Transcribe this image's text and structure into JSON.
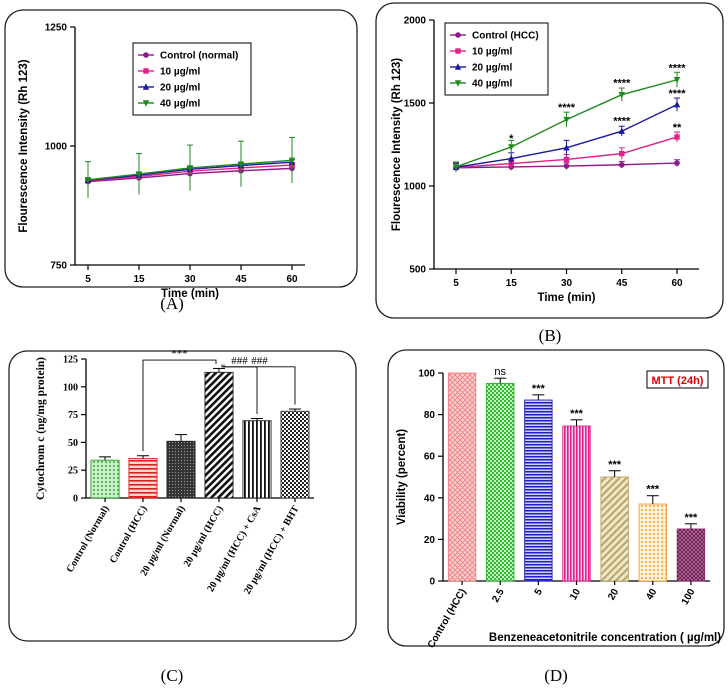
{
  "panel_labels": [
    "(A)",
    "(B)",
    "(C)",
    "(D)"
  ],
  "chart_data": [
    {
      "id": "A",
      "type": "line",
      "xlabel": "Time (min)",
      "ylabel": "Flourescence Intensity (Rh 123)",
      "x": [
        5,
        15,
        30,
        45,
        60
      ],
      "xticks": [
        "5",
        "15",
        "30",
        "45",
        "60"
      ],
      "yticks": [
        "750",
        "1000",
        "1250"
      ],
      "ylim": [
        750,
        1250
      ],
      "legend_position": "top-right",
      "series": [
        {
          "name": "Control (normal)",
          "color": "#8b1a8b",
          "marker": "circle",
          "values": [
            925,
            933,
            942,
            948,
            953
          ],
          "err": [
            5,
            5,
            5,
            5,
            5
          ]
        },
        {
          "name": "10 µg/ml",
          "color": "#e0218a",
          "marker": "square",
          "values": [
            927,
            936,
            947,
            954,
            960
          ],
          "err": [
            5,
            5,
            5,
            5,
            5
          ]
        },
        {
          "name": "20 µg/ml",
          "color": "#1a1a9e",
          "marker": "triangle",
          "values": [
            928,
            939,
            951,
            959,
            966
          ],
          "err": [
            5,
            5,
            5,
            5,
            5
          ]
        },
        {
          "name": "40 µg/ml",
          "color": "#1f8a1f",
          "marker": "triangle-down",
          "values": [
            929,
            941,
            954,
            962,
            970
          ],
          "err": [
            38,
            43,
            48,
            48,
            48
          ]
        }
      ]
    },
    {
      "id": "B",
      "type": "line",
      "xlabel": "Time (min)",
      "ylabel": "Flourescence Intensity (Rh 123)",
      "x": [
        5,
        15,
        30,
        45,
        60
      ],
      "xticks": [
        "5",
        "15",
        "30",
        "45",
        "60"
      ],
      "yticks": [
        "500",
        "1000",
        "1500",
        "2000"
      ],
      "ylim": [
        500,
        2000
      ],
      "legend_position": "top-left",
      "series": [
        {
          "name": "Control (HCC)",
          "color": "#8b1a8b",
          "marker": "circle",
          "values": [
            1110,
            1115,
            1120,
            1128,
            1138
          ],
          "err": [
            25,
            20,
            20,
            20,
            20
          ]
        },
        {
          "name": "10 µg/ml",
          "color": "#e0218a",
          "marker": "square",
          "values": [
            1112,
            1135,
            1160,
            1195,
            1295
          ],
          "err": [
            25,
            30,
            30,
            35,
            30
          ]
        },
        {
          "name": "20 µg/ml",
          "color": "#1a1a9e",
          "marker": "triangle",
          "values": [
            1113,
            1165,
            1230,
            1330,
            1490
          ],
          "err": [
            25,
            35,
            45,
            30,
            40
          ]
        },
        {
          "name": "40 µg/ml",
          "color": "#1f8a1f",
          "marker": "triangle-down",
          "values": [
            1115,
            1235,
            1400,
            1550,
            1640
          ],
          "err": [
            30,
            40,
            45,
            40,
            45
          ]
        }
      ],
      "annotations": [
        {
          "x": 15,
          "y": 1290,
          "text": "*"
        },
        {
          "x": 30,
          "y": 1475,
          "text": "****"
        },
        {
          "x": 45,
          "y": 1625,
          "text": "****"
        },
        {
          "x": 45,
          "y": 1395,
          "text": "****"
        },
        {
          "x": 60,
          "y": 1715,
          "text": "****"
        },
        {
          "x": 60,
          "y": 1560,
          "text": "****"
        },
        {
          "x": 60,
          "y": 1355,
          "text": "**"
        }
      ]
    },
    {
      "id": "C",
      "type": "bar",
      "ylabel": "Cytochrom c (ng/mg protein)",
      "categories": [
        "Control (Normal)",
        "Control (HCC)",
        "20 µg/ml (Normal)",
        "20 µg/ml (HCC)",
        "20 µg/ml (HCC) + CsA",
        "20 µg/ml (HCC) + BHT"
      ],
      "values": [
        34,
        35.5,
        51,
        113,
        69.5,
        78
      ],
      "err": [
        3,
        2.5,
        6,
        3.5,
        2,
        2
      ],
      "ylim": [
        0,
        125
      ],
      "yticks": [
        "0",
        "25",
        "50",
        "75",
        "100",
        "125"
      ],
      "colors": [
        "#2e9e2e",
        "#e01e1e",
        "#222222",
        "#222222",
        "#222222",
        "#444444"
      ],
      "patterns": [
        "dots",
        "hlines",
        "solid-dark",
        "diag",
        "vlines",
        "checker"
      ],
      "brackets": [
        {
          "from": 1,
          "to": 3,
          "text": "***"
        },
        {
          "from": 3,
          "to": 4,
          "text": "###"
        },
        {
          "from": 3,
          "to": 5,
          "text": "###"
        }
      ]
    },
    {
      "id": "D",
      "type": "bar",
      "title": "MTT (24h)",
      "xlabel": "Benzeneacetonitrile concentration ( µg/ml)",
      "ylabel": "Viability (percent)",
      "categories": [
        "Control (HCC)",
        "2.5",
        "5",
        "10",
        "20",
        "40",
        "100"
      ],
      "values": [
        100,
        95,
        87,
        74.5,
        50,
        37,
        25
      ],
      "err": [
        0,
        2.5,
        2.5,
        3,
        3,
        4,
        2.5
      ],
      "ylim": [
        0,
        100
      ],
      "yticks": [
        "0",
        "20",
        "40",
        "60",
        "80",
        "100"
      ],
      "colors": [
        "#f08080",
        "#2eb82e",
        "#2020c0",
        "#e0218a",
        "#b5a56a",
        "#f0a030",
        "#8b2a6b"
      ],
      "significance": [
        "",
        "ns",
        "***",
        "***",
        "***",
        "***",
        "***"
      ]
    }
  ]
}
